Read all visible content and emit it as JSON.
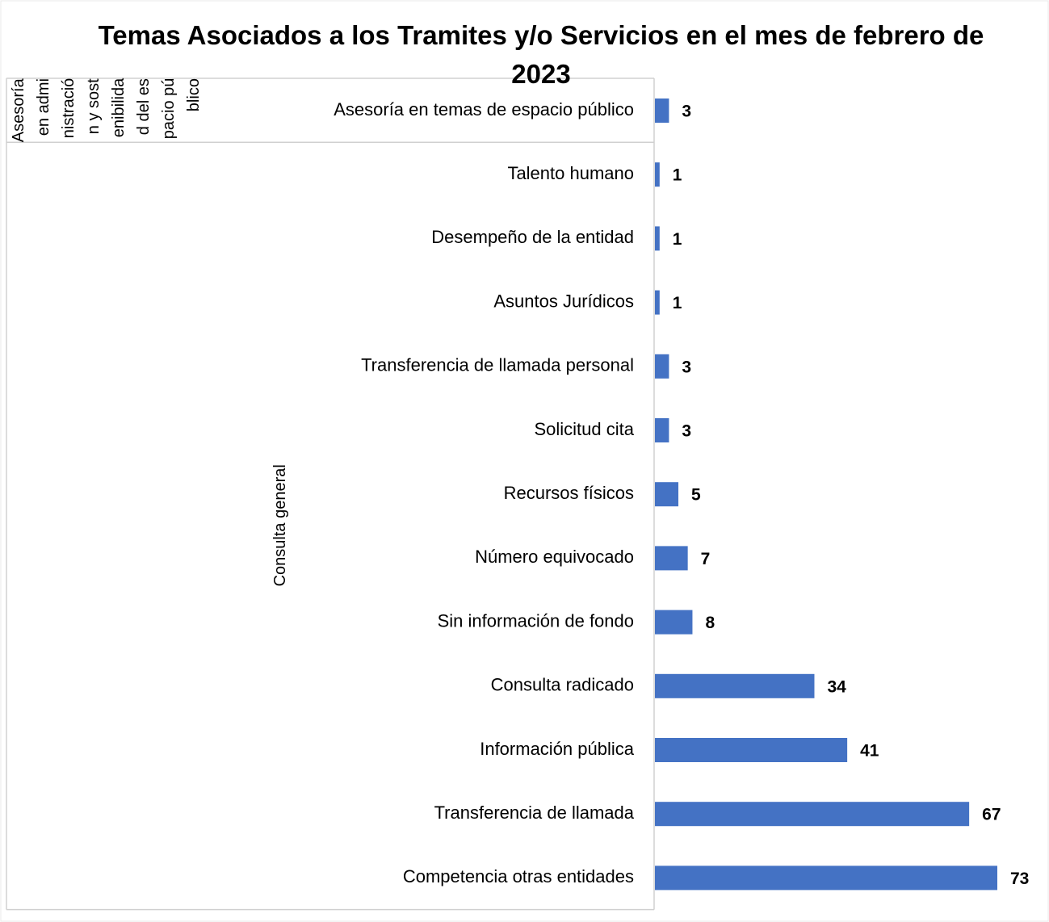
{
  "chart_data": {
    "type": "bar",
    "title": "Temas Asociados a los Tramites y/o Servicios en el mes de febrero de 2023",
    "color": "#4472c4",
    "groups": [
      {
        "name": "Asesoría en administración y sostenibilidad del espacio público",
        "categories": [
          "Asesoría en temas de espacio público"
        ],
        "values": [
          3
        ]
      },
      {
        "name": "Consulta general",
        "categories": [
          "Talento humano",
          "Desempeño de la entidad",
          "Asuntos Jurídicos",
          "Transferencia de llamada personal",
          "Solicitud cita",
          "Recursos físicos",
          "Número equivocado",
          "Sin información de fondo",
          "Consulta radicado",
          "Información pública",
          "Transferencia de llamada",
          "Competencia otras entidades"
        ],
        "values": [
          1,
          1,
          1,
          3,
          3,
          5,
          7,
          8,
          34,
          41,
          67,
          73
        ]
      }
    ]
  }
}
